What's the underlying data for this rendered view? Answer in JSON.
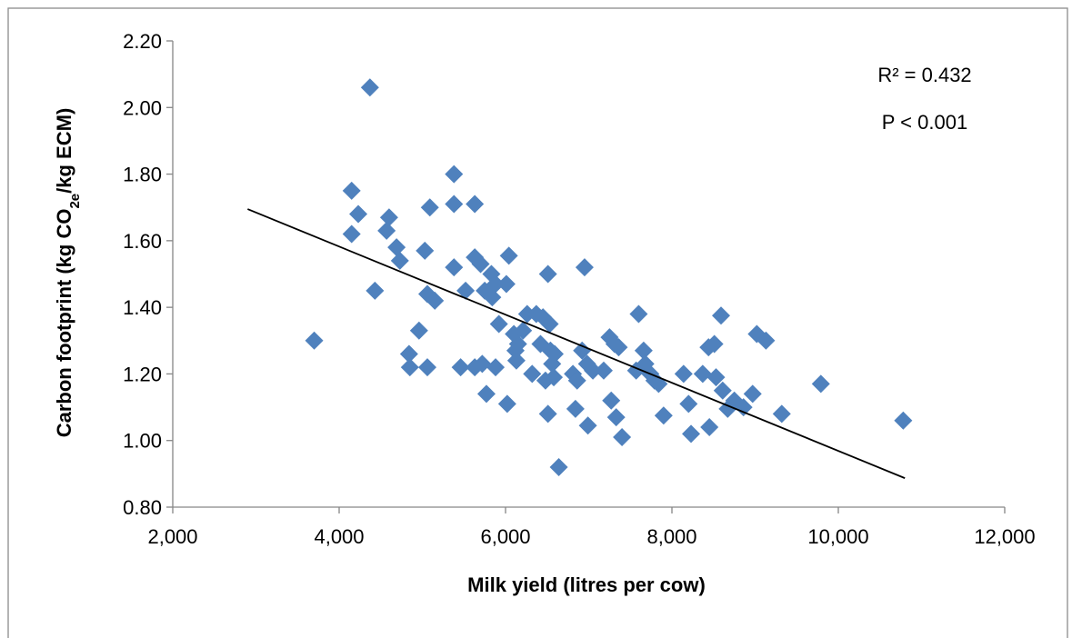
{
  "chart_data": {
    "type": "scatter",
    "xlabel": "Milk yield (litres per cow)",
    "ylabel": {
      "before": "Carbon footprint (kg CO",
      "sub": "2e",
      "after": "/kg ECM)"
    },
    "annotations": [
      "R² = 0.432",
      "P < 0.001"
    ],
    "color": "#4f81bd",
    "xlim": [
      2000,
      12000
    ],
    "ylim": [
      0.8,
      2.2
    ],
    "xticks": [
      {
        "value": 2000,
        "label": "2,000"
      },
      {
        "value": 4000,
        "label": "4,000"
      },
      {
        "value": 6000,
        "label": "6,000"
      },
      {
        "value": 8000,
        "label": "8,000"
      },
      {
        "value": 10000,
        "label": "10,000"
      },
      {
        "value": 12000,
        "label": "12,000"
      }
    ],
    "yticks": [
      {
        "value": 0.8,
        "label": "0.80"
      },
      {
        "value": 1.0,
        "label": "1.00"
      },
      {
        "value": 1.2,
        "label": "1.20"
      },
      {
        "value": 1.4,
        "label": "1.40"
      },
      {
        "value": 1.6,
        "label": "1.60"
      },
      {
        "value": 1.8,
        "label": "1.80"
      },
      {
        "value": 2.0,
        "label": "2.00"
      },
      {
        "value": 2.2,
        "label": "2.20"
      }
    ],
    "x": [
      3700,
      4370,
      4150,
      4150,
      4230,
      4430,
      4600,
      4570,
      4690,
      4730,
      4840,
      4850,
      4960,
      5030,
      5060,
      5090,
      5060,
      5150,
      5380,
      5380,
      5380,
      5460,
      5520,
      5630,
      5630,
      5700,
      5750,
      5830,
      5880,
      5840,
      5920,
      5720,
      5630,
      5880,
      5770,
      6020,
      6010,
      6040,
      6100,
      6120,
      6130,
      6150,
      6210,
      6260,
      6320,
      6370,
      6420,
      6450,
      6480,
      6510,
      6530,
      6540,
      6560,
      6590,
      6510,
      6580,
      6640,
      6810,
      6860,
      6920,
      6950,
      6980,
      6840,
      6990,
      7050,
      7180,
      7250,
      7310,
      7360,
      7270,
      7330,
      7400,
      7600,
      7570,
      7660,
      7680,
      7740,
      7790,
      7840,
      7900,
      8140,
      8200,
      8230,
      8370,
      8440,
      8510,
      8530,
      8450,
      8590,
      8610,
      8670,
      8750,
      8860,
      8970,
      9020,
      9130,
      9320,
      9790,
      10780
    ],
    "y": [
      1.3,
      2.06,
      1.75,
      1.62,
      1.68,
      1.45,
      1.67,
      1.63,
      1.58,
      1.54,
      1.26,
      1.22,
      1.33,
      1.57,
      1.22,
      1.7,
      1.44,
      1.42,
      1.8,
      1.71,
      1.52,
      1.22,
      1.45,
      1.71,
      1.55,
      1.53,
      1.45,
      1.5,
      1.47,
      1.43,
      1.35,
      1.23,
      1.22,
      1.22,
      1.14,
      1.11,
      1.47,
      1.555,
      1.32,
      1.27,
      1.24,
      1.29,
      1.33,
      1.38,
      1.2,
      1.38,
      1.29,
      1.37,
      1.18,
      1.5,
      1.35,
      1.27,
      1.23,
      1.26,
      1.08,
      1.19,
      0.92,
      1.2,
      1.18,
      1.27,
      1.52,
      1.23,
      1.095,
      1.045,
      1.21,
      1.21,
      1.31,
      1.29,
      1.28,
      1.12,
      1.07,
      1.01,
      1.38,
      1.21,
      1.27,
      1.23,
      1.2,
      1.18,
      1.17,
      1.075,
      1.2,
      1.11,
      1.02,
      1.2,
      1.28,
      1.29,
      1.19,
      1.04,
      1.375,
      1.15,
      1.095,
      1.12,
      1.1,
      1.14,
      1.32,
      1.3,
      1.08,
      1.17,
      1.06
    ],
    "trendline": {
      "x": [
        2900,
        10800
      ],
      "y": [
        1.695,
        0.887
      ],
      "color": "#000000"
    }
  }
}
